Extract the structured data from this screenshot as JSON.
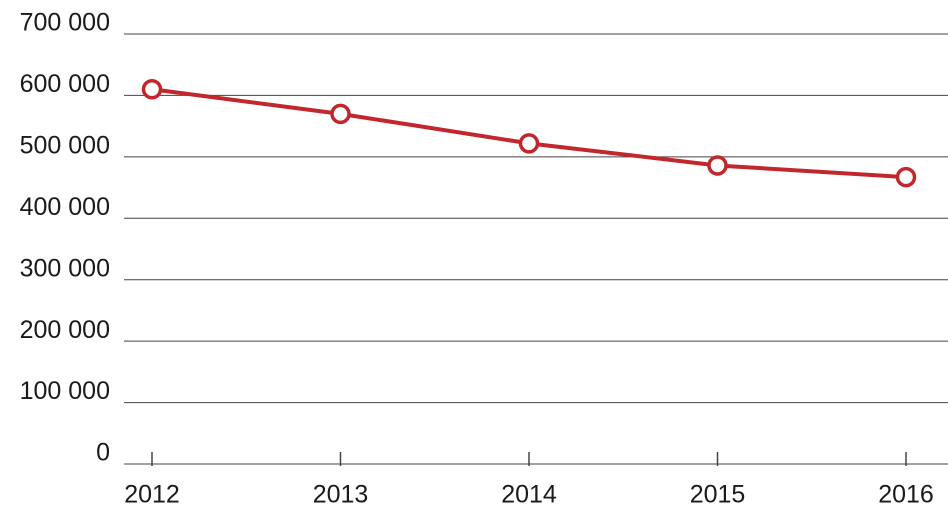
{
  "chart_data": {
    "type": "line",
    "categories": [
      "2012",
      "2013",
      "2014",
      "2015",
      "2016"
    ],
    "series": [
      {
        "color": "#c1272d",
        "values": [
          610000,
          570000,
          522000,
          486000,
          467000
        ]
      }
    ],
    "ylim": [
      0,
      700000
    ],
    "yticks": [
      0,
      {
        "value": 100000,
        "label": "100 000"
      },
      {
        "value": 200000,
        "label": "200 000"
      },
      {
        "value": 300000,
        "label": "300 000"
      },
      {
        "value": 400000,
        "label": "400 000"
      },
      {
        "value": 500000,
        "label": "500 000"
      },
      {
        "value": 600000,
        "label": "600 000"
      },
      {
        "value": 700000,
        "label": "700 000"
      }
    ],
    "grid": true
  }
}
